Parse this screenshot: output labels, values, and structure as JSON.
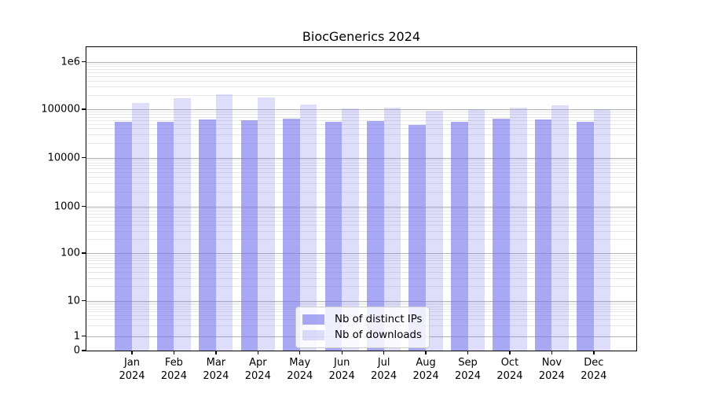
{
  "title": "BiocGenerics 2024",
  "chart_data": {
    "type": "bar",
    "title": "BiocGenerics 2024",
    "xlabel": "",
    "ylabel": "",
    "yscale": "symlog",
    "ylim": [
      0,
      2000000
    ],
    "grid": true,
    "legend_position": "lower center",
    "categories": [
      {
        "month": "Jan",
        "year": "2024"
      },
      {
        "month": "Feb",
        "year": "2024"
      },
      {
        "month": "Mar",
        "year": "2024"
      },
      {
        "month": "Apr",
        "year": "2024"
      },
      {
        "month": "May",
        "year": "2024"
      },
      {
        "month": "Jun",
        "year": "2024"
      },
      {
        "month": "Jul",
        "year": "2024"
      },
      {
        "month": "Aug",
        "year": "2024"
      },
      {
        "month": "Sep",
        "year": "2024"
      },
      {
        "month": "Oct",
        "year": "2024"
      },
      {
        "month": "Nov",
        "year": "2024"
      },
      {
        "month": "Dec",
        "year": "2024"
      }
    ],
    "series": [
      {
        "name": "Nb of distinct IPs",
        "color": "rgba(115,115,236,0.62)",
        "values": [
          55000,
          55000,
          62000,
          60000,
          64000,
          55000,
          56000,
          48000,
          54000,
          63000,
          62000,
          55000
        ]
      },
      {
        "name": "Nb of downloads",
        "color": "rgba(115,115,236,0.24)",
        "values": [
          135000,
          170000,
          205000,
          175000,
          124000,
          105000,
          107000,
          93000,
          101000,
          109000,
          123000,
          100000
        ]
      }
    ],
    "yticks": [
      {
        "label": "1e6",
        "value": 1000000
      },
      {
        "label": "100000",
        "value": 100000
      },
      {
        "label": "10000",
        "value": 10000
      },
      {
        "label": "1000",
        "value": 1000
      },
      {
        "label": "100",
        "value": 100
      },
      {
        "label": "10",
        "value": 10
      },
      {
        "label": "1",
        "value": 1
      },
      {
        "label": "0",
        "value": 0
      }
    ]
  },
  "colors": {
    "major_grid": "#b2b2b2",
    "minor_grid": "#e8e8e8",
    "spine": "#000000",
    "legend_border": "#cccccc",
    "legend_bg": "rgba(255,255,255,0.8)",
    "series_dark": "rgba(115,115,236,0.62)",
    "series_light": "rgba(115,115,236,0.24)"
  }
}
